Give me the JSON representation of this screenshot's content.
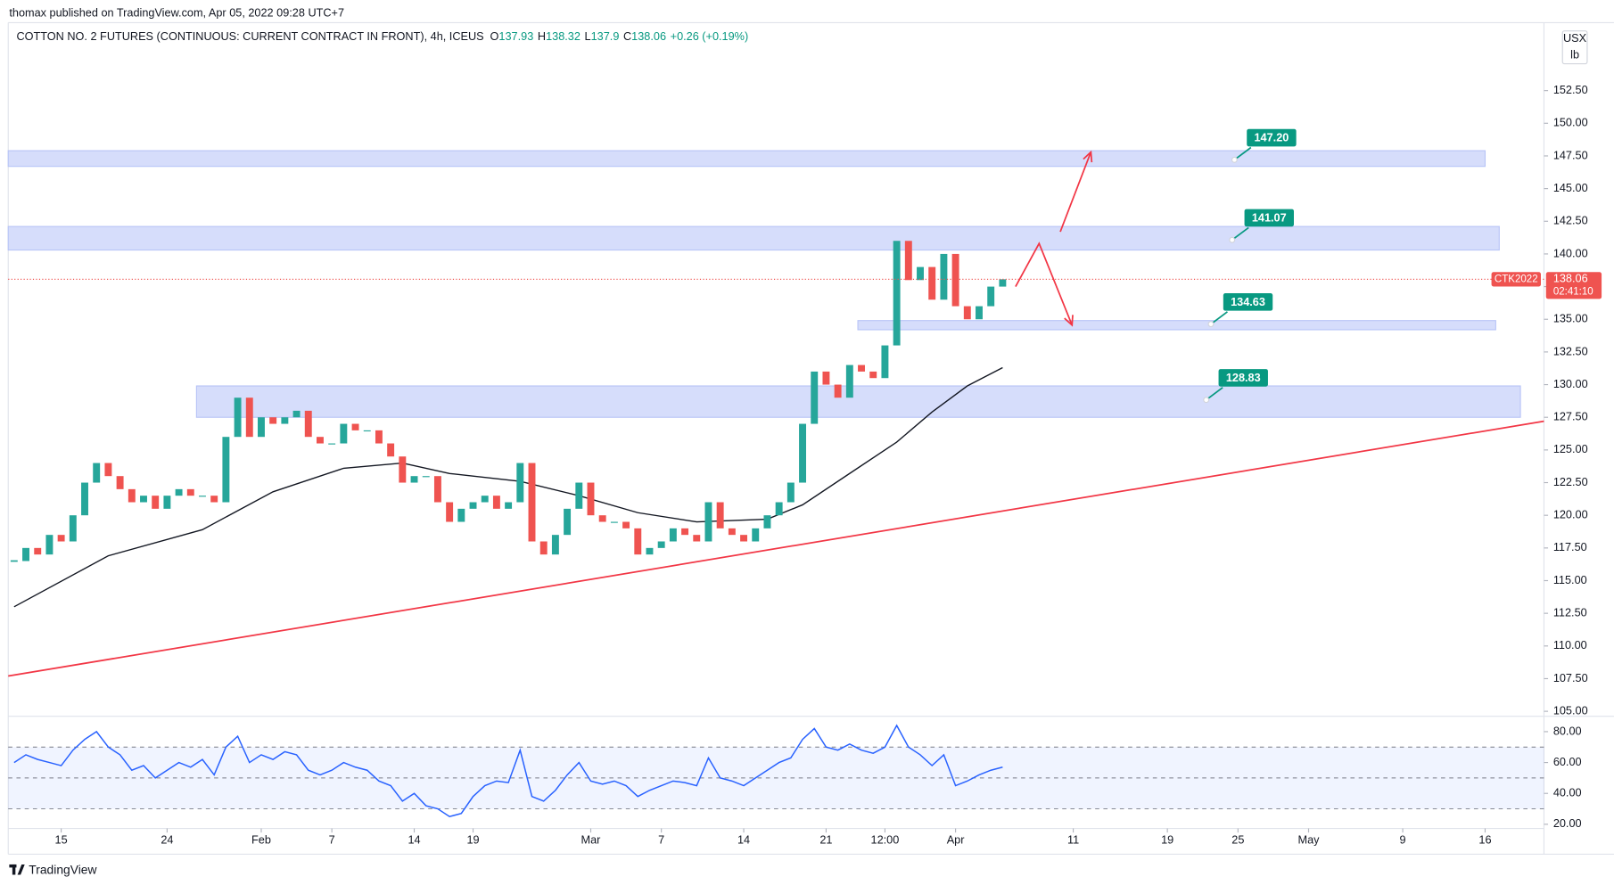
{
  "header": {
    "published": "thomax published on TradingView.com, Apr 05, 2022 09:28 UTC+7"
  },
  "footer": {
    "brand": "TradingView"
  },
  "chart_data": {
    "type": "candlestick",
    "title": "COTTON NO. 2 FUTURES (CONTINUOUS: CURRENT CONTRACT IN FRONT), 4h, ICEUS",
    "ohlc": [
      {
        "label": "O",
        "value": 137.93
      },
      {
        "label": "H",
        "value": 138.32
      },
      {
        "label": "L",
        "value": 137.9
      },
      {
        "label": "C",
        "value": 138.06
      }
    ],
    "change": "+0.26 (+0.19%)",
    "currency": "USX",
    "unit": "lb",
    "symbol_tag": "CTK2022",
    "countdown": "02:41:10",
    "up_color": "#26a69a",
    "down_color": "#ef5350",
    "x": [
      11,
      12,
      13,
      14,
      15,
      16,
      17,
      18,
      19,
      20,
      21,
      22,
      23,
      24,
      25,
      26,
      27,
      28,
      29,
      30,
      31,
      32,
      33,
      34,
      35,
      36,
      37,
      38,
      39,
      40,
      41,
      42,
      43,
      44,
      45,
      46,
      47,
      48,
      49,
      50,
      51,
      52,
      53,
      54,
      55,
      56,
      57,
      58,
      59,
      60,
      61,
      62,
      63,
      64,
      65,
      66,
      67,
      68,
      69,
      70,
      71,
      72,
      73,
      74,
      75,
      76,
      77,
      78,
      79,
      80,
      81,
      82,
      83,
      84,
      85,
      86,
      87,
      88,
      89,
      90,
      91,
      92,
      93,
      94,
      95
    ],
    "values": [
      116.5,
      117.5,
      117,
      118.5,
      118,
      120,
      122.5,
      124,
      123,
      122,
      121,
      121.5,
      120.5,
      121.5,
      122,
      121.5,
      121.5,
      121,
      126,
      129,
      126,
      127.5,
      127,
      127.5,
      128,
      126,
      125.5,
      125.5,
      127,
      126.5,
      126.5,
      125.5,
      124.5,
      122.5,
      123,
      123,
      121,
      119.5,
      120.5,
      121,
      121.5,
      120.5,
      121,
      124,
      118,
      117,
      118.5,
      120.5,
      122.5,
      120,
      119.5,
      119.5,
      119,
      117,
      117.5,
      118,
      119,
      118.5,
      118,
      121,
      119,
      118.5,
      118,
      119,
      120,
      121,
      122.5,
      127,
      131,
      130,
      129,
      131.5,
      131,
      130.5,
      133,
      141,
      138,
      139,
      136.5,
      140,
      136,
      135,
      136,
      137.5,
      138.06
    ],
    "ma": {
      "color": "#131722",
      "x": [
        11,
        19,
        27,
        33,
        39,
        44,
        48,
        54,
        59,
        64,
        69,
        75,
        78,
        82,
        86,
        89,
        92,
        95
      ],
      "values": [
        113,
        116.9,
        118.9,
        121.8,
        123.6,
        124,
        123.2,
        122.6,
        121.5,
        120.2,
        119.5,
        119.7,
        120.8,
        123.2,
        125.6,
        127.9,
        129.9,
        131.3
      ]
    },
    "xlim": [
      10.5,
      141
    ],
    "xticks": [
      {
        "value": 15,
        "label": "15"
      },
      {
        "value": 24,
        "label": "24"
      },
      {
        "value": 32,
        "label": "Feb"
      },
      {
        "value": 38,
        "label": "7"
      },
      {
        "value": 45,
        "label": "14"
      },
      {
        "value": 50,
        "label": "19"
      },
      {
        "value": 60,
        "label": "Mar"
      },
      {
        "value": 66,
        "label": "7"
      },
      {
        "value": 73,
        "label": "14"
      },
      {
        "value": 80,
        "label": "21"
      },
      {
        "value": 85,
        "label": "12:00"
      },
      {
        "value": 91,
        "label": "Apr"
      },
      {
        "value": 101,
        "label": "11"
      },
      {
        "value": 109,
        "label": "19"
      },
      {
        "value": 115,
        "label": "25"
      },
      {
        "value": 121,
        "label": "May"
      },
      {
        "value": 129,
        "label": "9"
      },
      {
        "value": 136,
        "label": "16"
      }
    ],
    "ylim": [
      104.7,
      157.7
    ],
    "yticks": [
      {
        "value": 105,
        "label": "105.00"
      },
      {
        "value": 107.5,
        "label": "107.50"
      },
      {
        "value": 110,
        "label": "110.00"
      },
      {
        "value": 112.5,
        "label": "112.50"
      },
      {
        "value": 115,
        "label": "115.00"
      },
      {
        "value": 117.5,
        "label": "117.50"
      },
      {
        "value": 120,
        "label": "120.00"
      },
      {
        "value": 122.5,
        "label": "122.50"
      },
      {
        "value": 125,
        "label": "125.00"
      },
      {
        "value": 127.5,
        "label": "127.50"
      },
      {
        "value": 130,
        "label": "130.00"
      },
      {
        "value": 132.5,
        "label": "132.50"
      },
      {
        "value": 135,
        "label": "135.00"
      },
      {
        "value": 137.5,
        "label": "137.50"
      },
      {
        "value": 140,
        "label": "140.00"
      },
      {
        "value": 142.5,
        "label": "142.50"
      },
      {
        "value": 145,
        "label": "145.00"
      },
      {
        "value": 147.5,
        "label": "147.50"
      },
      {
        "value": 150,
        "label": "150.00"
      },
      {
        "value": 152.5,
        "label": "152.50"
      }
    ],
    "price_line_color": "#ef5350",
    "zones": [
      {
        "value": 147.2,
        "label": "147.20",
        "x": 114.7,
        "bounds": [
          146.7,
          147.9
        ],
        "span": [
          10.5,
          136
        ]
      },
      {
        "value": 141.07,
        "label": "141.07",
        "x": 114.5,
        "bounds": [
          140.3,
          142.1
        ],
        "span": [
          10.5,
          137.2
        ]
      },
      {
        "value": 134.63,
        "label": "134.63",
        "x": 112.7,
        "bounds": [
          134.2,
          134.9
        ],
        "span": [
          82.7,
          136.9
        ]
      },
      {
        "value": 128.83,
        "label": "128.83",
        "x": 112.3,
        "bounds": [
          127.5,
          129.9
        ],
        "span": [
          26.5,
          139
        ]
      }
    ],
    "zone_color": "#d6ddfb",
    "label_color": "#089981",
    "trendline": {
      "color": "#f23645",
      "x": [
        10.5,
        141
      ],
      "values": [
        107.7,
        127.2
      ]
    },
    "projections": [
      {
        "x": [
          96.1,
          98.1,
          100.9
        ],
        "values": [
          137.5,
          140.8,
          134.55
        ]
      },
      {
        "x": [
          99.9,
          102.5
        ],
        "values": [
          141.7,
          147.8
        ]
      }
    ],
    "rsi": {
      "color": "#2962ff",
      "values": [
        60,
        65,
        62,
        60,
        58,
        68,
        75,
        80,
        70,
        65,
        55,
        58,
        50,
        55,
        60,
        57,
        62,
        52,
        70,
        77,
        60,
        65,
        62,
        67,
        65,
        55,
        52,
        55,
        60,
        57,
        55,
        48,
        45,
        35,
        40,
        32,
        30,
        25,
        27,
        38,
        45,
        48,
        47,
        68,
        38,
        35,
        42,
        52,
        60,
        48,
        46,
        48,
        45,
        38,
        42,
        45,
        48,
        47,
        45,
        63,
        50,
        48,
        45,
        50,
        55,
        60,
        63,
        75,
        82,
        70,
        68,
        72,
        68,
        66,
        70,
        84,
        70,
        65,
        58,
        65,
        45,
        48,
        52,
        55,
        57
      ],
      "ylim": [
        17.3,
        89.3
      ],
      "yticks": [
        {
          "value": 20,
          "label": "20.00"
        },
        {
          "value": 40,
          "label": "40.00"
        },
        {
          "value": 60,
          "label": "60.00"
        },
        {
          "value": 80,
          "label": "80.00"
        }
      ],
      "levels": [
        30,
        50,
        70
      ]
    }
  }
}
